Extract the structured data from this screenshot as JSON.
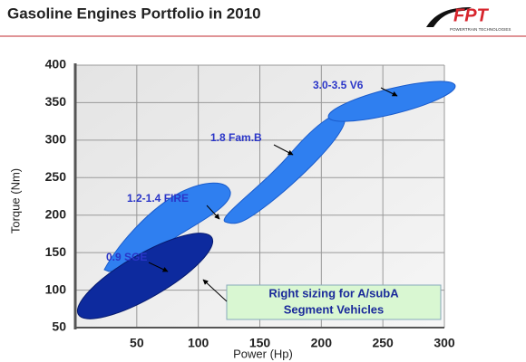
{
  "chart_data": {
    "type": "region",
    "title": "Gasoline Engines Portfolio in 2010",
    "logo": {
      "name": "FPT",
      "tagline": "POWERTRAIN TECHNOLOGIES"
    },
    "x_label": "Power (Hp)",
    "y_label": "Torque (Nm)",
    "xlim": [
      0,
      300
    ],
    "xticks": [
      50,
      100,
      150,
      200,
      250,
      300
    ],
    "ylim": [
      50,
      400
    ],
    "yticks": [
      50,
      100,
      150,
      200,
      250,
      300,
      350,
      400
    ],
    "grid": true,
    "annotations": [
      "3.0-3.5 V6",
      "1.8 Fam.B",
      "1.2-1.4 FIRE",
      "0.9 SGE"
    ],
    "callout": [
      "Right sizing for A/subA",
      "Segment Vehicles"
    ]
  }
}
